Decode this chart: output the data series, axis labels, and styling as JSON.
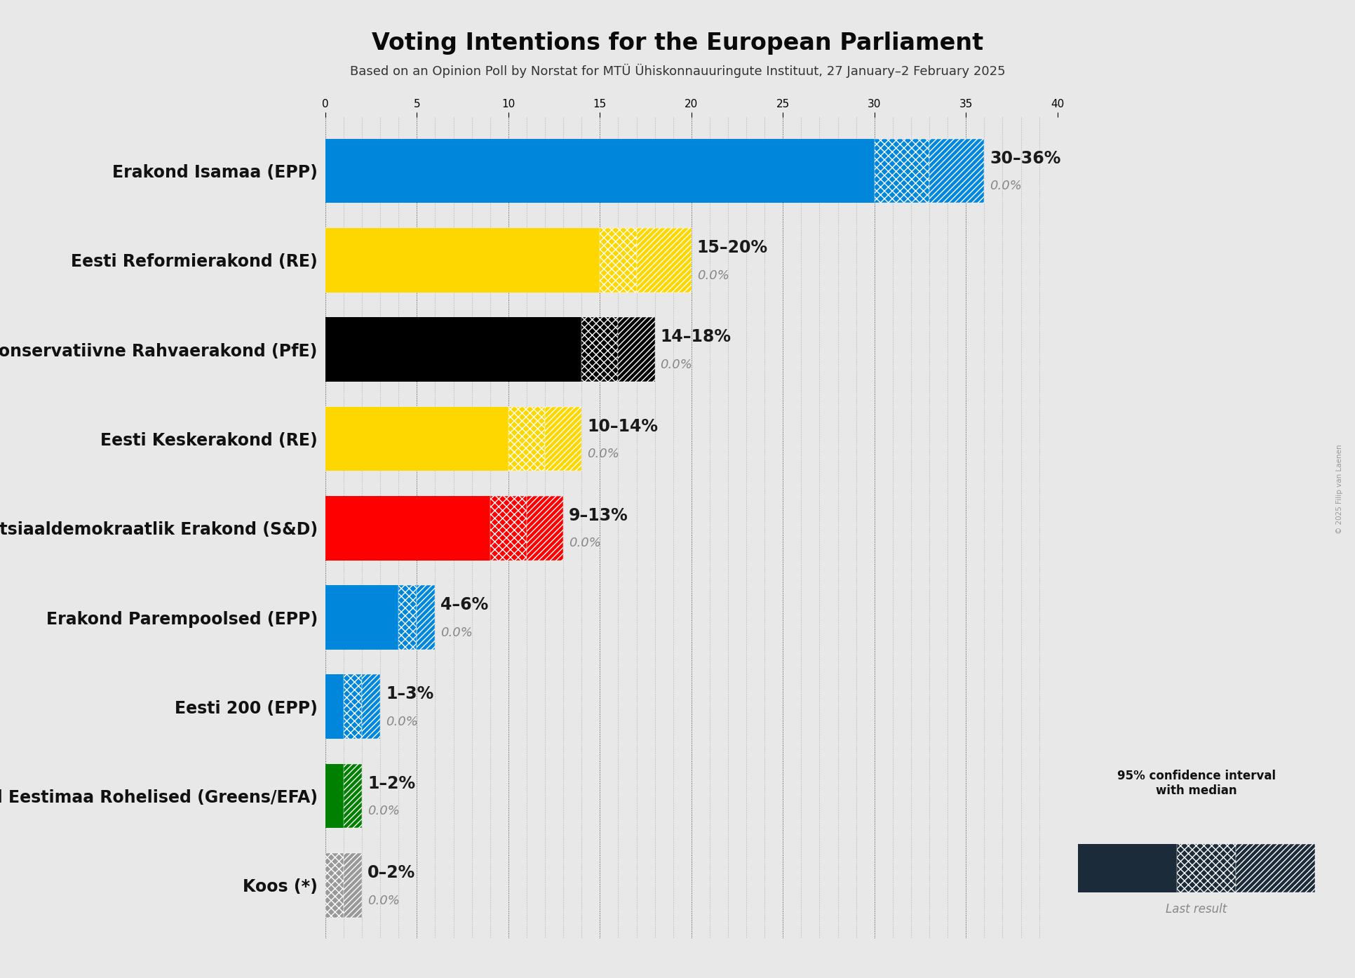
{
  "title": "Voting Intentions for the European Parliament",
  "subtitle": "Based on an Opinion Poll by Norstat for MTÜ Ühiskonnauuringute Instituut, 27 January–2 February 2025",
  "copyright": "© 2025 Filip van Laenen",
  "background_color": "#e8e8e8",
  "parties": [
    {
      "name": "Erakond Isamaa (EPP)",
      "low": 30,
      "high": 36,
      "median": 33,
      "last": 0.0,
      "color": "#0087DC"
    },
    {
      "name": "Eesti Reformierakond (RE)",
      "low": 15,
      "high": 20,
      "median": 17,
      "last": 0.0,
      "color": "#FFD700"
    },
    {
      "name": "Eesti Konservatiivne Rahvaerakond (PfE)",
      "low": 14,
      "high": 18,
      "median": 16,
      "last": 0.0,
      "color": "#000000"
    },
    {
      "name": "Eesti Keskerakond (RE)",
      "low": 10,
      "high": 14,
      "median": 12,
      "last": 0.0,
      "color": "#FFD700"
    },
    {
      "name": "Sotsiaaldemokraatlik Erakond (S&D)",
      "low": 9,
      "high": 13,
      "median": 11,
      "last": 0.0,
      "color": "#FF0000"
    },
    {
      "name": "Erakond Parempoolsed (EPP)",
      "low": 4,
      "high": 6,
      "median": 5,
      "last": 0.0,
      "color": "#0087DC"
    },
    {
      "name": "Eesti 200 (EPP)",
      "low": 1,
      "high": 3,
      "median": 2,
      "last": 0.0,
      "color": "#0087DC"
    },
    {
      "name": "Erakond Eestimaa Rohelised (Greens/EFA)",
      "low": 1,
      "high": 2,
      "median": 1,
      "last": 0.0,
      "color": "#008000"
    },
    {
      "name": "Koos (*)",
      "low": 0,
      "high": 2,
      "median": 1,
      "last": 0.0,
      "color": "#999999"
    }
  ],
  "xlim_max": 40,
  "xtick_step": 5,
  "bar_height": 0.72,
  "label_fontsize": 17,
  "title_fontsize": 24,
  "subtitle_fontsize": 13,
  "tick_fontsize": 11,
  "range_label_fontsize": 17,
  "last_label_fontsize": 13
}
